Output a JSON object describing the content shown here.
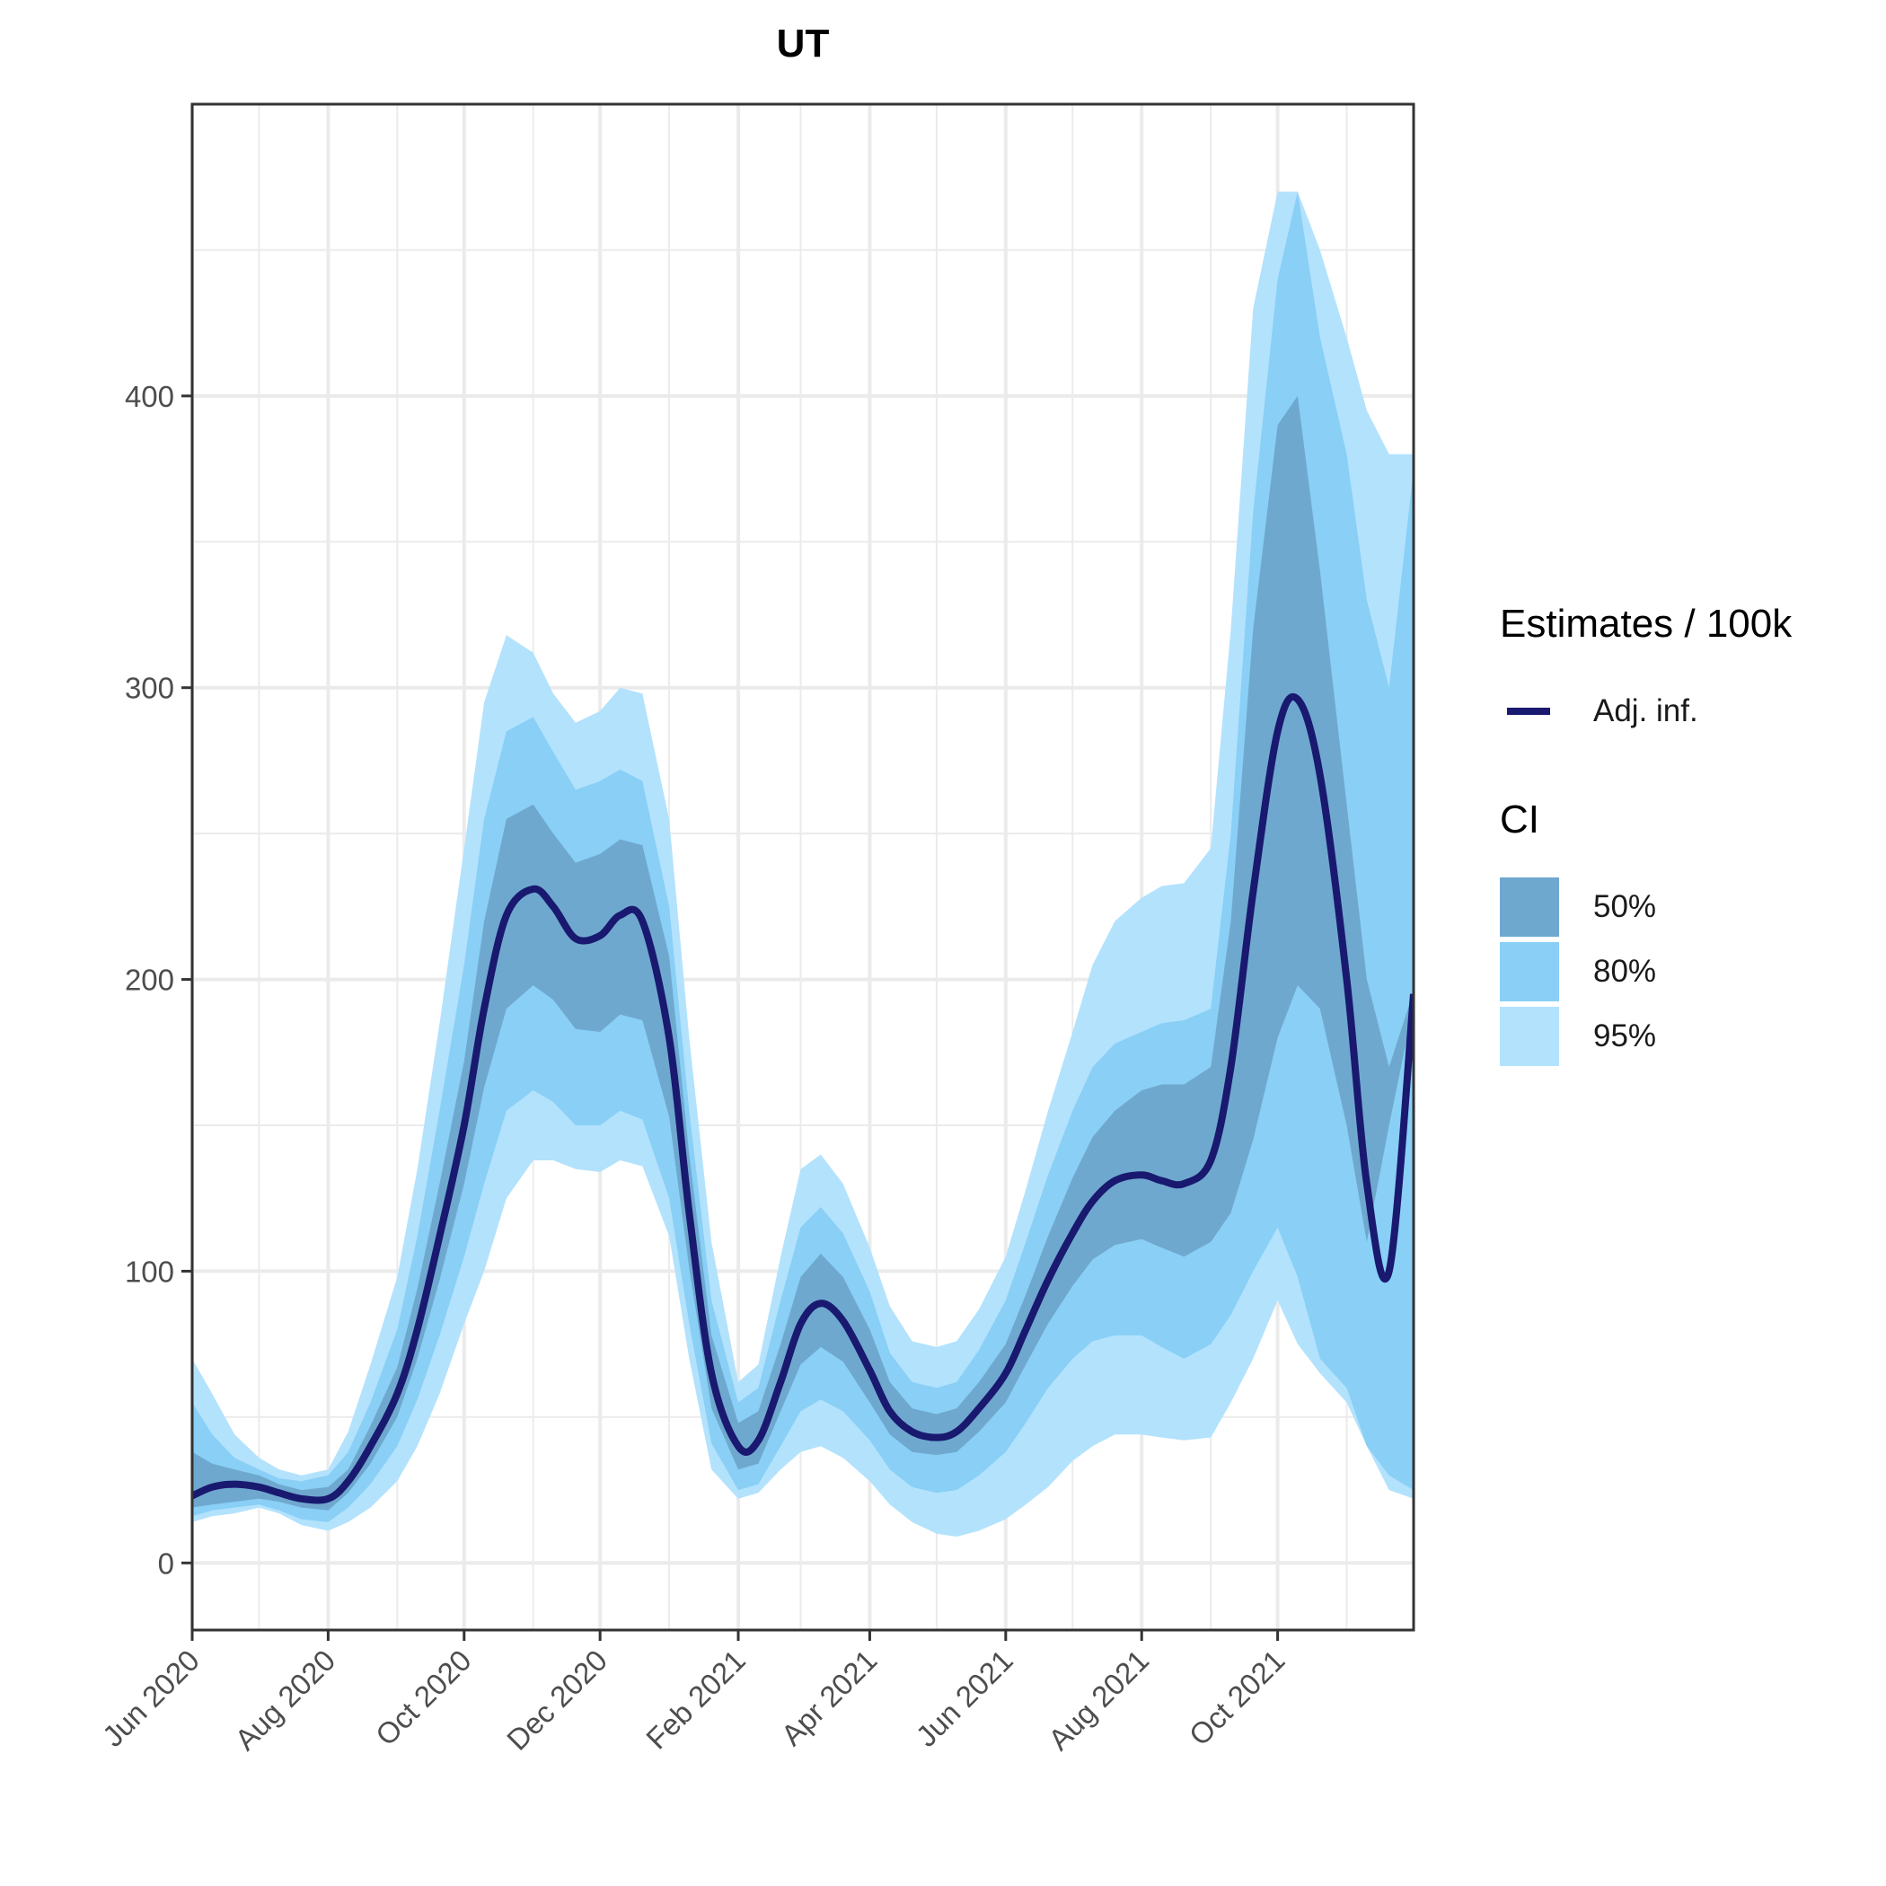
{
  "chart_data": {
    "type": "area",
    "title": "UT",
    "xlabel": "",
    "ylabel": "",
    "ylim": [
      -23,
      500
    ],
    "xlim": [
      "2020-06-01",
      "2021-12-01"
    ],
    "grid": true,
    "x_ticks": [
      "Jun 2020",
      "Aug 2020",
      "Oct 2020",
      "Dec 2020",
      "Feb 2021",
      "Apr 2021",
      "Jun 2021",
      "Aug 2021",
      "Oct 2021"
    ],
    "y_ticks": [
      "0",
      "100",
      "200",
      "300",
      "400"
    ],
    "x": [
      "2020-06-01",
      "2020-06-10",
      "2020-06-20",
      "2020-07-01",
      "2020-07-10",
      "2020-07-20",
      "2020-08-01",
      "2020-08-10",
      "2020-08-20",
      "2020-09-01",
      "2020-09-10",
      "2020-09-20",
      "2020-10-01",
      "2020-10-10",
      "2020-10-20",
      "2020-11-01",
      "2020-11-10",
      "2020-11-20",
      "2020-12-01",
      "2020-12-10",
      "2020-12-20",
      "2021-01-01",
      "2021-01-10",
      "2021-01-20",
      "2021-02-01",
      "2021-02-10",
      "2021-02-20",
      "2021-03-01",
      "2021-03-10",
      "2021-03-20",
      "2021-04-01",
      "2021-04-10",
      "2021-04-20",
      "2021-05-01",
      "2021-05-10",
      "2021-05-20",
      "2021-06-01",
      "2021-06-10",
      "2021-06-20",
      "2021-07-01",
      "2021-07-10",
      "2021-07-20",
      "2021-08-01",
      "2021-08-10",
      "2021-08-20",
      "2021-09-01",
      "2021-09-10",
      "2021-09-20",
      "2021-10-01",
      "2021-10-10",
      "2021-10-20",
      "2021-11-01",
      "2021-11-10",
      "2021-11-20",
      "2021-12-01"
    ],
    "series": [
      {
        "name": "Adj. inf.",
        "color": "#191970",
        "values": [
          23,
          26,
          27,
          26,
          24,
          22,
          22,
          28,
          40,
          58,
          80,
          112,
          150,
          190,
          222,
          231,
          225,
          214,
          215,
          222,
          220,
          180,
          120,
          65,
          40,
          42,
          62,
          82,
          89,
          83,
          66,
          52,
          45,
          43,
          45,
          53,
          65,
          80,
          97,
          113,
          124,
          131,
          133,
          131,
          130,
          138,
          170,
          230,
          285,
          296,
          270,
          200,
          130,
          100,
          195
        ]
      }
    ],
    "ci_bands": {
      "ci50": {
        "color": "#6fa8cf",
        "lower": [
          19,
          20,
          21,
          22,
          21,
          19,
          18,
          24,
          34,
          50,
          70,
          97,
          130,
          163,
          190,
          198,
          193,
          183,
          182,
          188,
          186,
          153,
          101,
          53,
          32,
          34,
          52,
          68,
          74,
          69,
          55,
          44,
          38,
          37,
          38,
          45,
          55,
          68,
          82,
          95,
          104,
          109,
          111,
          108,
          105,
          110,
          120,
          145,
          180,
          198,
          190,
          150,
          110,
          150,
          191
        ],
        "upper": [
          38,
          34,
          32,
          30,
          27,
          25,
          26,
          32,
          47,
          67,
          94,
          130,
          172,
          220,
          255,
          260,
          250,
          240,
          243,
          248,
          246,
          208,
          140,
          78,
          48,
          52,
          75,
          98,
          106,
          98,
          80,
          62,
          53,
          51,
          53,
          62,
          75,
          92,
          112,
          132,
          146,
          155,
          162,
          164,
          164,
          170,
          220,
          320,
          390,
          400,
          340,
          260,
          200,
          170,
          196
        ]
      },
      "ci80": {
        "color": "#89cff6",
        "lower": [
          16,
          18,
          19,
          20,
          18,
          15,
          14,
          19,
          27,
          40,
          56,
          78,
          105,
          130,
          155,
          162,
          158,
          150,
          150,
          155,
          152,
          125,
          82,
          41,
          25,
          27,
          40,
          52,
          56,
          52,
          42,
          32,
          26,
          24,
          25,
          30,
          38,
          48,
          60,
          70,
          76,
          78,
          78,
          74,
          70,
          75,
          85,
          100,
          115,
          98,
          70,
          60,
          40,
          30,
          25
        ],
        "upper": [
          55,
          44,
          36,
          32,
          29,
          28,
          30,
          38,
          55,
          80,
          112,
          155,
          205,
          255,
          285,
          290,
          278,
          265,
          268,
          272,
          268,
          225,
          155,
          90,
          55,
          60,
          90,
          115,
          122,
          113,
          93,
          72,
          62,
          60,
          62,
          73,
          90,
          110,
          133,
          155,
          170,
          178,
          182,
          185,
          186,
          190,
          250,
          360,
          440,
          470,
          420,
          380,
          330,
          300,
          375
        ]
      },
      "ci95": {
        "color": "#b3e2fd",
        "lower": [
          14,
          16,
          17,
          19,
          17,
          13,
          11,
          14,
          19,
          28,
          40,
          58,
          82,
          100,
          125,
          138,
          138,
          135,
          134,
          138,
          136,
          112,
          70,
          32,
          22,
          24,
          32,
          38,
          40,
          36,
          28,
          20,
          14,
          10,
          9,
          11,
          15,
          20,
          26,
          35,
          40,
          44,
          44,
          43,
          42,
          43,
          55,
          70,
          90,
          75,
          65,
          55,
          40,
          25,
          22
        ],
        "upper": [
          70,
          58,
          44,
          36,
          32,
          30,
          32,
          45,
          68,
          98,
          135,
          185,
          245,
          295,
          318,
          312,
          298,
          288,
          292,
          300,
          298,
          255,
          180,
          110,
          62,
          68,
          105,
          135,
          140,
          130,
          108,
          88,
          76,
          74,
          76,
          87,
          105,
          128,
          155,
          182,
          205,
          220,
          228,
          232,
          233,
          245,
          320,
          430,
          470,
          470,
          450,
          420,
          395,
          380,
          380
        ]
      }
    },
    "legend": {
      "position": "right",
      "estimates_title": "Estimates / 100k",
      "line_label": "Adj. inf.",
      "ci_title": "CI",
      "ci_labels": [
        "50%",
        "80%",
        "95%"
      ]
    }
  }
}
